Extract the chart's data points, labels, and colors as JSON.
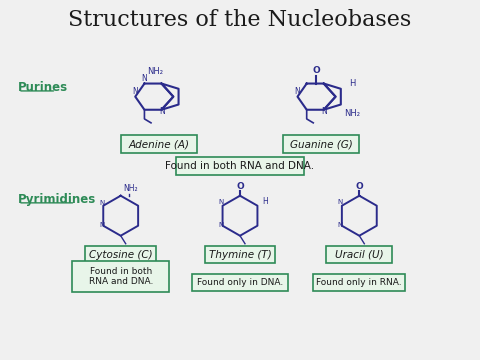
{
  "title": "Structures of the Nucleobases",
  "background_color": "#f0f0f0",
  "title_fontsize": 16,
  "title_color": "#1a1a1a",
  "section_label_color": "#2e8b57",
  "box_edge_color": "#2e8b57",
  "box_face_color": "#e8f5e9",
  "structure_color": "#2b2b8b",
  "text_color": "#1a1a1a",
  "purines_label": "Purines",
  "pyrimidines_label": "Pyrimidines",
  "adenine_label": "Adenine (A)",
  "guanine_label": "Guanine (G)",
  "cytosine_label": "Cytosine (C)",
  "thymine_label": "Thymine (T)",
  "uracil_label": "Uracil (U)",
  "purines_note": "Found in both RNA and DNA.",
  "cytosine_note": "Found in both\nRNA and DNA.",
  "thymine_note": "Found only in DNA.",
  "uracil_note": "Found only in RNA."
}
